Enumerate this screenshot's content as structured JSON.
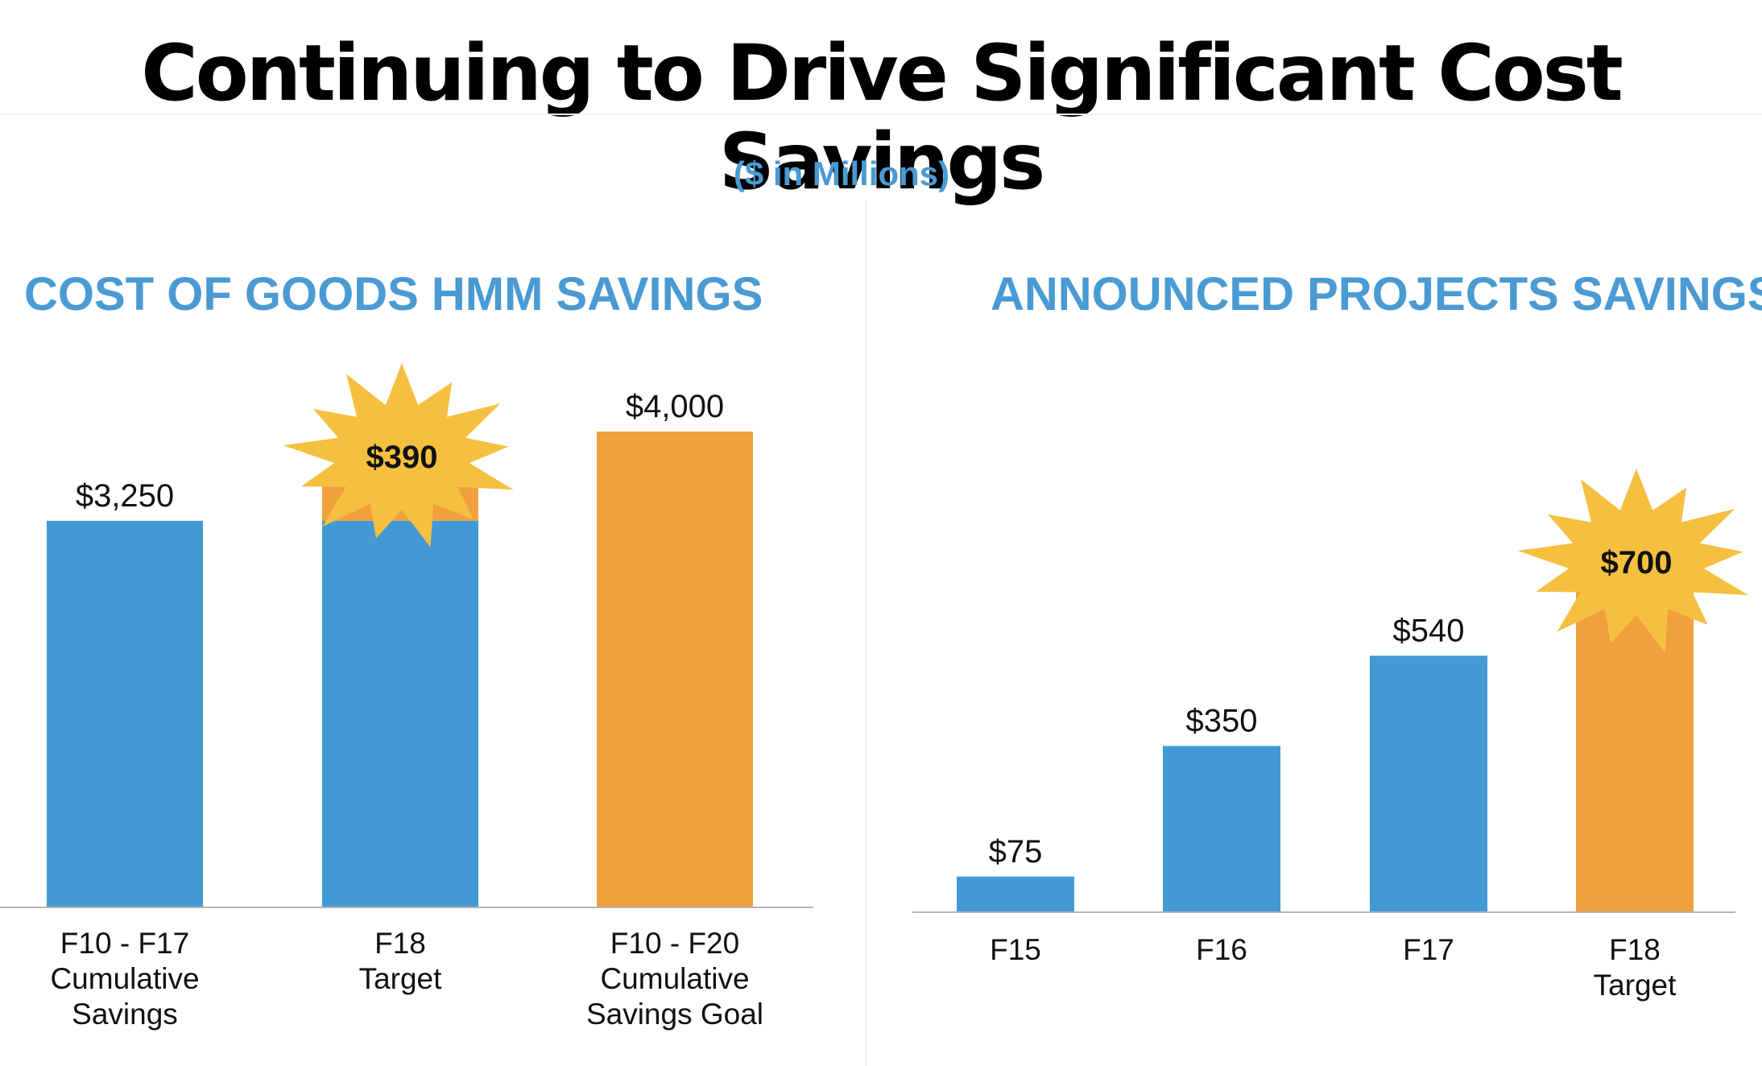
{
  "slide_title": "Continuing to Drive Significant Cost Savings",
  "units_note": "($ in Millions)",
  "colors": {
    "blue": "#4299d4",
    "orange": "#f0a03c",
    "burst": "#f5c040",
    "heading": "#4a9ad3",
    "axis": "#b5b5b5"
  },
  "chart_data": [
    {
      "type": "bar",
      "title": "COST OF GOODS HMM SAVINGS",
      "categories": [
        [
          "F10 - F17",
          "Cumulative",
          "Savings"
        ],
        [
          "F18",
          "Target"
        ],
        [
          "F10 - F20",
          "Cumulative",
          "Savings Goal"
        ]
      ],
      "series": [
        {
          "values": [
            3250,
            3250,
            0
          ],
          "color": "blue"
        },
        {
          "values": [
            0,
            390,
            4000
          ],
          "color": "orange"
        }
      ],
      "value_labels": [
        "$3,250",
        "$390",
        "$4,000"
      ],
      "highlight": {
        "category_index": 1,
        "label": "$390",
        "style": "starburst"
      },
      "ylim": [
        0,
        4000
      ],
      "grid": false,
      "legend": "none"
    },
    {
      "type": "bar",
      "title": "ANNOUNCED PROJECTS SAVINGS",
      "categories": [
        [
          "F15"
        ],
        [
          "F16"
        ],
        [
          "F17"
        ],
        [
          "F18",
          "Target"
        ]
      ],
      "values": [
        75,
        350,
        540,
        700
      ],
      "bar_colors": [
        "blue",
        "blue",
        "blue",
        "orange"
      ],
      "value_labels": [
        "$75",
        "$350",
        "$540",
        "$700"
      ],
      "highlight": {
        "category_index": 3,
        "label": "$700",
        "style": "starburst"
      },
      "ylim": [
        0,
        700
      ],
      "grid": false,
      "legend": "none"
    }
  ]
}
